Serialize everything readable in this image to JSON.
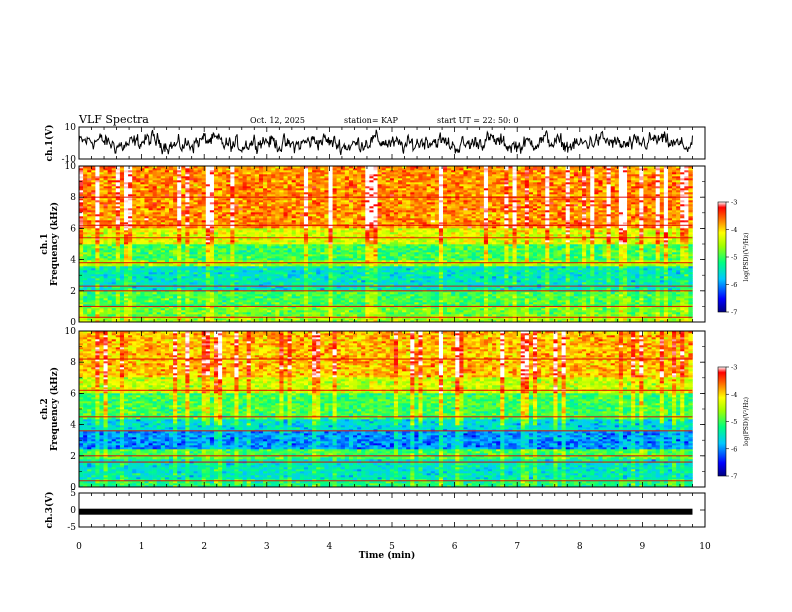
{
  "header": {
    "title": "VLF Spectra",
    "date": "Oct. 12, 2025",
    "station": "station= KAP",
    "start_ut": "start  UT =   22: 50: 0"
  },
  "chart_data": [
    {
      "type": "line",
      "name": "ch1-waveform",
      "ylabel": "ch.1(V)",
      "ylim": [
        -10,
        10
      ],
      "yticks": [
        "10",
        "-10"
      ],
      "xlim": [
        0,
        10
      ],
      "data_extent_min": 9.8,
      "description_series": "noise waveform oscillating roughly between -7 V and +8 V"
    },
    {
      "type": "heatmap",
      "name": "ch1-spectrogram",
      "ylabel": "ch.1\nFrequency (kHz)",
      "ylim": [
        0,
        10
      ],
      "yticks": [
        "0",
        "2",
        "4",
        "6",
        "8",
        "10"
      ],
      "xlim": [
        0,
        10
      ],
      "data_extent_min": 9.8,
      "bands_khz": [
        {
          "from": 0,
          "to": 0.4,
          "level": -4.6
        },
        {
          "from": 0.4,
          "to": 1.0,
          "level": -4.8
        },
        {
          "from": 1.0,
          "to": 2.0,
          "level": -5.0
        },
        {
          "from": 2.0,
          "to": 3.6,
          "level": -5.5
        },
        {
          "from": 3.6,
          "to": 4.0,
          "level": -4.6
        },
        {
          "from": 4.0,
          "to": 5.0,
          "level": -5.0
        },
        {
          "from": 5.0,
          "to": 6.0,
          "level": -4.3
        },
        {
          "from": 6.0,
          "to": 10.0,
          "level": -3.7
        }
      ],
      "colorbar": {
        "label": "log(PSD)(V²/Hz)",
        "ticks": [
          "-3",
          "-4",
          "-5",
          "-6",
          "-7"
        ],
        "range": [
          -7,
          -3
        ]
      }
    },
    {
      "type": "heatmap",
      "name": "ch2-spectrogram",
      "ylabel": "ch.2\nFrequency (kHz)",
      "ylim": [
        0,
        10
      ],
      "yticks": [
        "0",
        "2",
        "4",
        "6",
        "8",
        "10"
      ],
      "xlim": [
        0,
        10
      ],
      "data_extent_min": 9.8,
      "bands_khz": [
        {
          "from": 0,
          "to": 0.5,
          "level": -5.2
        },
        {
          "from": 0.5,
          "to": 1.8,
          "level": -5.5
        },
        {
          "from": 1.8,
          "to": 2.4,
          "level": -5.0
        },
        {
          "from": 2.4,
          "to": 3.6,
          "level": -6.0
        },
        {
          "from": 3.6,
          "to": 4.4,
          "level": -5.6
        },
        {
          "from": 4.4,
          "to": 6.0,
          "level": -5.0
        },
        {
          "from": 6.0,
          "to": 7.0,
          "level": -4.4
        },
        {
          "from": 7.0,
          "to": 10.0,
          "level": -3.9
        }
      ],
      "colorbar": {
        "label": "log(PSD)(V²/Hz)",
        "ticks": [
          "-3",
          "-4",
          "-5",
          "-6",
          "-7"
        ],
        "range": [
          -7,
          -3
        ]
      }
    },
    {
      "type": "line",
      "name": "ch3-waveform",
      "ylabel": "ch.3(V)",
      "ylim": [
        -5,
        5
      ],
      "yticks": [
        "5",
        "0",
        "-5"
      ],
      "xlim": [
        0,
        10
      ],
      "data_extent_min": 9.8,
      "description_series": "nearly constant level around -0.5 V"
    }
  ],
  "x_axis": {
    "label": "Time (min)",
    "ticks": [
      "0",
      "1",
      "2",
      "3",
      "4",
      "5",
      "6",
      "7",
      "8",
      "9",
      "10"
    ]
  },
  "colors": {
    "waveform": "#000000",
    "palette_low": "#00008b",
    "palette_high": "#ff0000"
  }
}
